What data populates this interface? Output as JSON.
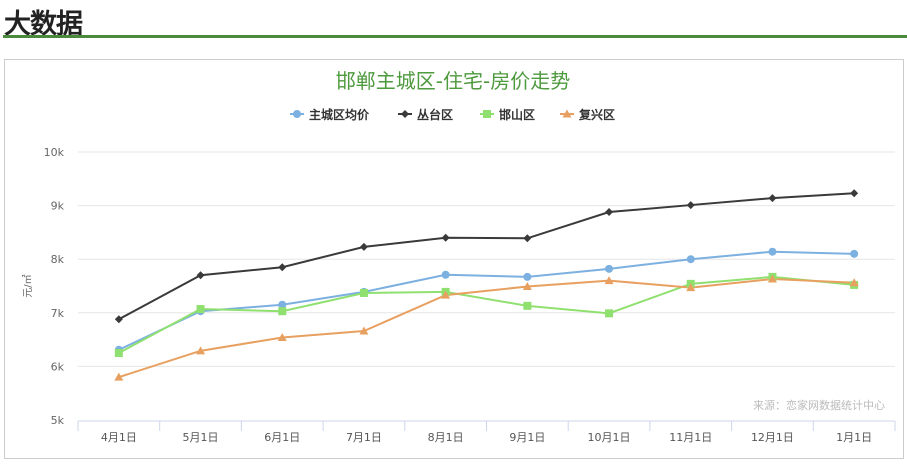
{
  "page": {
    "heading": "大数据"
  },
  "chart_data": {
    "type": "line",
    "title": "邯郸主城区-住宅-房价走势",
    "ylabel": "元/㎡",
    "xlabel": "",
    "categories": [
      "4月1日",
      "5月1日",
      "6月1日",
      "7月1日",
      "8月1日",
      "9月1日",
      "10月1日",
      "11月1日",
      "12月1日",
      "1月1日"
    ],
    "ylim": [
      5000,
      10000
    ],
    "yticks": [
      5000,
      6000,
      7000,
      8000,
      9000,
      10000
    ],
    "ytick_labels": [
      "5k",
      "6k",
      "7k",
      "8k",
      "9k",
      "10k"
    ],
    "grid": true,
    "legend": "top-center",
    "credit": "来源：恋家网数据统计中心",
    "series": [
      {
        "name": "主城区均价",
        "color": "#7cb0e0",
        "marker": "circle",
        "values": [
          6310,
          7030,
          7150,
          7390,
          7710,
          7670,
          7820,
          8000,
          8140,
          8100
        ]
      },
      {
        "name": "丛台区",
        "color": "#3a3a3a",
        "marker": "diamond",
        "values": [
          6880,
          7700,
          7850,
          8230,
          8400,
          8390,
          8880,
          9010,
          9140,
          9230
        ]
      },
      {
        "name": "邯山区",
        "color": "#90e070",
        "marker": "square",
        "values": [
          6250,
          7070,
          7030,
          7370,
          7390,
          7130,
          6990,
          7540,
          7670,
          7520
        ]
      },
      {
        "name": "复兴区",
        "color": "#e8a060",
        "marker": "triangle",
        "values": [
          5800,
          6290,
          6540,
          6660,
          7330,
          7490,
          7600,
          7470,
          7630,
          7560
        ]
      }
    ]
  }
}
